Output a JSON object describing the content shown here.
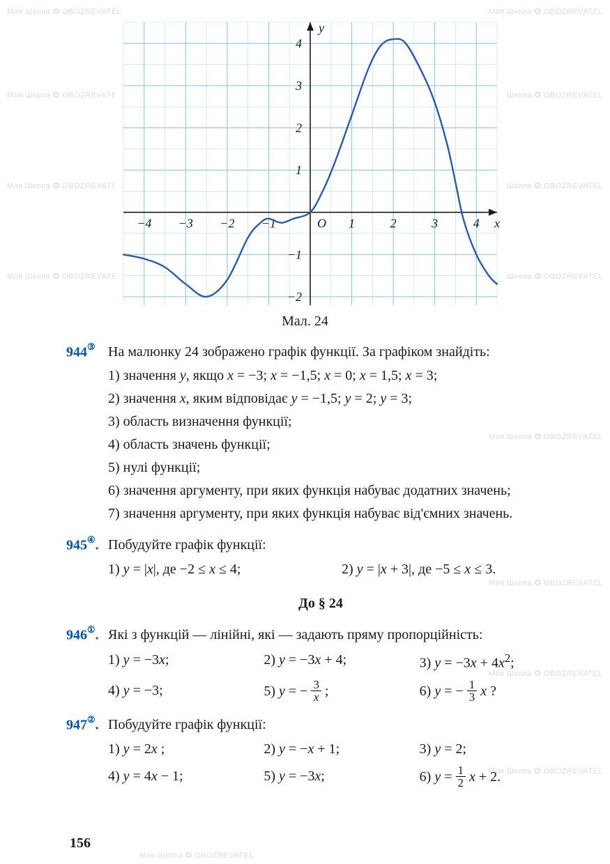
{
  "chart": {
    "type": "line",
    "caption": "Мал. 24",
    "x_axis_label": "x",
    "y_axis_label": "y",
    "xlim": [
      -4.5,
      4.5
    ],
    "ylim": [
      -2.2,
      4.5
    ],
    "x_ticks": [
      -4,
      -3,
      -2,
      -1,
      1,
      2,
      3,
      4
    ],
    "y_ticks": [
      -2,
      -1,
      1,
      2,
      3,
      4
    ],
    "origin_label": "O",
    "curve_color": "#2a5aa8",
    "curve_width": 2.4,
    "axis_color": "#1a1a1a",
    "grid_minor_color": "#b8e0e8",
    "grid_major_color": "#88c8d8",
    "background_color": "#ffffff",
    "label_fontsize": 18,
    "points": [
      [
        -4.5,
        -1.0
      ],
      [
        -4.0,
        -1.1
      ],
      [
        -3.5,
        -1.3
      ],
      [
        -3.0,
        -1.7
      ],
      [
        -2.5,
        -2.0
      ],
      [
        -2.0,
        -1.6
      ],
      [
        -1.5,
        -0.6
      ],
      [
        -1.2,
        -0.25
      ],
      [
        -1.0,
        -0.15
      ],
      [
        -0.7,
        -0.25
      ],
      [
        -0.4,
        -0.15
      ],
      [
        0.0,
        0.0
      ],
      [
        0.3,
        0.5
      ],
      [
        0.6,
        1.2
      ],
      [
        1.0,
        2.3
      ],
      [
        1.4,
        3.4
      ],
      [
        1.7,
        3.95
      ],
      [
        2.0,
        4.1
      ],
      [
        2.3,
        4.0
      ],
      [
        2.7,
        3.3
      ],
      [
        3.0,
        2.6
      ],
      [
        3.3,
        1.6
      ],
      [
        3.5,
        0.7
      ],
      [
        3.7,
        -0.2
      ],
      [
        4.0,
        -1.0
      ],
      [
        4.3,
        -1.5
      ],
      [
        4.5,
        -1.7
      ]
    ]
  },
  "problems": [
    {
      "id": "944",
      "marker": "③",
      "prompt": "На малюнку 24 зображено графік функції. За графіком знайдіть:",
      "lines": [
        "1) значення <span class='italic'>y</span>, якщо <span class='italic'>x</span> = −3; <span class='italic'>x</span> = −1,5; <span class='italic'>x</span> = 0; <span class='italic'>x</span> = 1,5; <span class='italic'>x</span> = 3;",
        "2) значення <span class='italic'>x</span>, яким відповідає <span class='italic'>y</span> = −1,5; <span class='italic'>y</span> = 2; <span class='italic'>y</span> = 3;",
        "3) область визначення функції;",
        "4) область значень функції;",
        "5) нулі функції;",
        "6) значення аргументу, при яких функція набуває додатних значень;",
        "7) значення аргументу, при яких функція набуває від'ємних значень."
      ]
    },
    {
      "id": "945",
      "marker": "④",
      "prompt": "Побудуйте графік функції:",
      "cols2": [
        "1) <span class='italic'>y</span> = |<span class='italic'>x</span>|, де −2 ≤ <span class='italic'>x</span> ≤ 4;",
        "2) <span class='italic'>y</span> = |<span class='italic'>x</span> + 3|, де −5 ≤ <span class='italic'>x</span> ≤ 3."
      ]
    }
  ],
  "section_title": "До § 24",
  "problems2": [
    {
      "id": "946",
      "marker": "①",
      "prompt": "Які з функцій — лінійні, які — задають пряму пропорційність:",
      "cols3": [
        [
          "1) <span class='italic'>y</span> = −3<span class='italic'>x</span>;",
          "2) <span class='italic'>y</span> = −3<span class='italic'>x</span> + 4;",
          "3) <span class='italic'>y</span> = −3<span class='italic'>x</span> + 4<span class='italic'>x</span><sup>2</sup>;"
        ],
        [
          "4) <span class='italic'>y</span> = −3;",
          "5) <span class='italic'>y</span> = − <span class='frac'><span class='n'>3</span><span class='d'><span class='italic'>x</span></span></span> ;",
          "6) <span class='italic'>y</span> = − <span class='frac'><span class='n'>1</span><span class='d'>3</span></span> <span class='italic'>x</span> ?"
        ]
      ]
    },
    {
      "id": "947",
      "marker": "②",
      "prompt": "Побудуйте графік функції:",
      "cols3": [
        [
          "1) <span class='italic'>y</span> = 2<span class='italic'>x</span> ;",
          "2) <span class='italic'>y</span> = −<span class='italic'>x</span> + 1;",
          "3) <span class='italic'>y</span> = 2;"
        ],
        [
          "4) <span class='italic'>y</span> = 4<span class='italic'>x</span> − 1;",
          "5) <span class='italic'>y</span> = −3<span class='italic'>x</span>;",
          "6) <span class='italic'>y</span> = <span class='frac'><span class='n'>1</span><span class='d'>2</span></span> <span class='italic'>x</span> + 2."
        ]
      ]
    }
  ],
  "page_number": "156",
  "watermark_text": "Моя Школа ✪ OBOZREVATEL"
}
